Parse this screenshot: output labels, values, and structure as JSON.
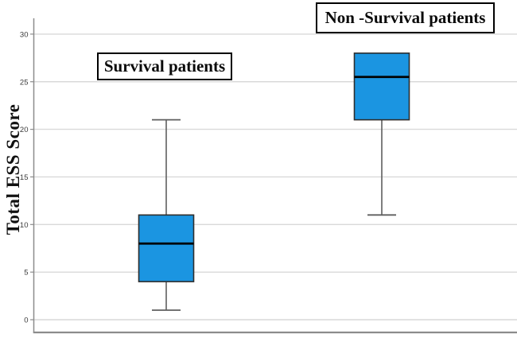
{
  "chart_data": {
    "type": "boxplot",
    "title": "",
    "xlabel": "",
    "ylabel": "Total ESS Score",
    "ylim": [
      0,
      30
    ],
    "yticks": [
      0,
      5,
      10,
      15,
      20,
      25,
      30
    ],
    "grid": true,
    "legend_position": "none",
    "categories": [
      "Survival patients",
      "Non -Survival patients"
    ],
    "series": [
      {
        "name": "Survival patients",
        "min": 1,
        "q1": 4,
        "median": 8,
        "q3": 11,
        "max": 21
      },
      {
        "name": "Non -Survival patients",
        "min": 11,
        "q1": 21,
        "median": 25.5,
        "q3": 28,
        "max": 28
      }
    ],
    "colors": {
      "box_fill": "#1B95E1",
      "box_border": "#2e2e2e",
      "median": "#000000",
      "whisker": "#5f5f5f",
      "gridline": "#d9d9d9",
      "axis": "#8c8c8c",
      "tick_label": "#3a3a3a",
      "annotation_border": "#000000",
      "annotation_bg": "#ffffff"
    }
  }
}
